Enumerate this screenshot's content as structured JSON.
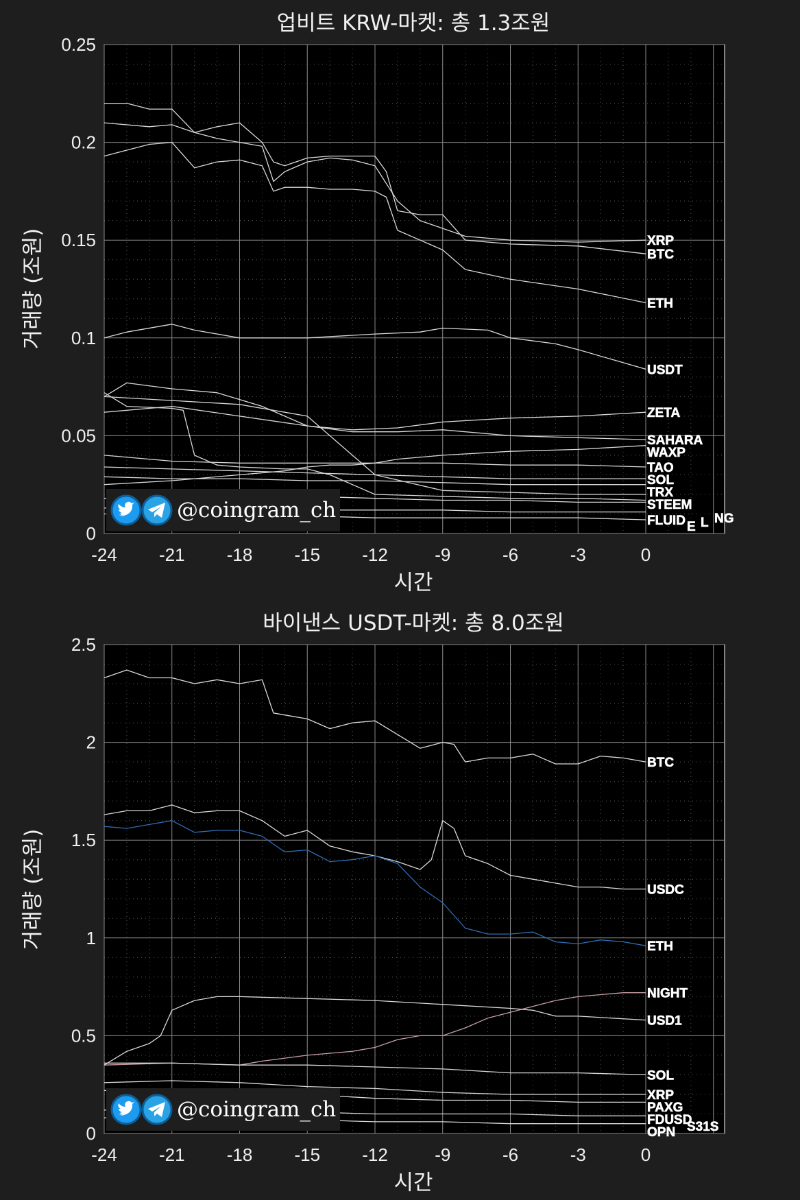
{
  "watermark": {
    "handle": "@coingram_ch",
    "icons": [
      "twitter-bird-icon",
      "telegram-plane-icon"
    ]
  },
  "chart_data": [
    {
      "type": "line",
      "title": "업비트 KRW-마켓: 총 1.3조원",
      "xlabel": "시간",
      "ylabel": "거래량 (조원)",
      "xlim": [
        -24,
        0
      ],
      "ylim": [
        0,
        0.25
      ],
      "xticks": [
        -24,
        -21,
        -18,
        -15,
        -12,
        -9,
        -6,
        -3,
        0
      ],
      "yticks": [
        0,
        0.05,
        0.1,
        0.15,
        0.2,
        0.25
      ],
      "ytick_labels": [
        "0",
        "0.05",
        "0.1",
        "0.15",
        "0.2",
        "0.25"
      ],
      "grid": true,
      "series": [
        {
          "name": "XRP",
          "color": "#d9d9d9",
          "x": [
            -24,
            -22,
            -21,
            -20,
            -19,
            -18,
            -17,
            -16.5,
            -16,
            -15,
            -14,
            -13,
            -12,
            -11,
            -10,
            -9,
            -8,
            -6,
            -3,
            0
          ],
          "y": [
            0.21,
            0.208,
            0.209,
            0.205,
            0.202,
            0.2,
            0.198,
            0.18,
            0.185,
            0.19,
            0.192,
            0.191,
            0.188,
            0.17,
            0.16,
            0.156,
            0.152,
            0.15,
            0.149,
            0.15
          ]
        },
        {
          "name": "BTC",
          "color": "#d9d9d9",
          "x": [
            -24,
            -23,
            -22,
            -21,
            -20,
            -19,
            -18,
            -17,
            -16.5,
            -16,
            -15,
            -14,
            -13,
            -12,
            -11.5,
            -11,
            -10,
            -9,
            -8,
            -6,
            -3,
            0
          ],
          "y": [
            0.22,
            0.22,
            0.217,
            0.217,
            0.205,
            0.208,
            0.21,
            0.2,
            0.19,
            0.188,
            0.192,
            0.193,
            0.193,
            0.193,
            0.185,
            0.165,
            0.163,
            0.163,
            0.15,
            0.148,
            0.147,
            0.143
          ]
        },
        {
          "name": "ETH",
          "color": "#d9d9d9",
          "x": [
            -24,
            -23,
            -22,
            -21,
            -20,
            -19,
            -18,
            -17,
            -16.5,
            -16,
            -15,
            -14,
            -13,
            -12,
            -11.5,
            -11,
            -10,
            -9,
            -8,
            -6,
            -3,
            0
          ],
          "y": [
            0.193,
            0.196,
            0.199,
            0.2,
            0.187,
            0.19,
            0.191,
            0.188,
            0.175,
            0.177,
            0.177,
            0.176,
            0.176,
            0.175,
            0.172,
            0.155,
            0.15,
            0.145,
            0.135,
            0.13,
            0.125,
            0.118
          ]
        },
        {
          "name": "USDT",
          "color": "#d9d9d9",
          "x": [
            -24,
            -23,
            -21,
            -20,
            -18,
            -15,
            -12,
            -10,
            -9,
            -7,
            -6,
            -4,
            -3,
            0
          ],
          "y": [
            0.1,
            0.103,
            0.107,
            0.104,
            0.1,
            0.1,
            0.102,
            0.103,
            0.105,
            0.104,
            0.1,
            0.097,
            0.094,
            0.084
          ]
        },
        {
          "name": "ZETA",
          "color": "#d9d9d9",
          "x": [
            -24,
            -21,
            -18,
            -15,
            -13,
            -11,
            -9,
            -6,
            -3,
            0
          ],
          "y": [
            0.062,
            0.065,
            0.06,
            0.055,
            0.053,
            0.054,
            0.057,
            0.059,
            0.06,
            0.062
          ]
        },
        {
          "name": "SAHARA",
          "color": "#d9d9d9",
          "x": [
            -24,
            -23,
            -21,
            -19,
            -17,
            -15,
            -13,
            -11,
            -9,
            -6,
            -3,
            0
          ],
          "y": [
            0.07,
            0.077,
            0.074,
            0.072,
            0.065,
            0.055,
            0.052,
            0.052,
            0.053,
            0.05,
            0.049,
            0.048
          ]
        },
        {
          "name": "WAXP",
          "color": "#d9d9d9",
          "x": [
            -24,
            -21,
            -18,
            -16,
            -15,
            -14,
            -13,
            -12,
            -11,
            -9,
            -6,
            -3,
            0
          ],
          "y": [
            0.025,
            0.027,
            0.03,
            0.032,
            0.034,
            0.035,
            0.035,
            0.036,
            0.038,
            0.04,
            0.042,
            0.043,
            0.045
          ]
        },
        {
          "name": "TAO",
          "color": "#d9d9d9",
          "x": [
            -24,
            -21,
            -18,
            -15,
            -12,
            -9,
            -6,
            -3,
            0
          ],
          "y": [
            0.04,
            0.037,
            0.036,
            0.036,
            0.036,
            0.036,
            0.035,
            0.035,
            0.034
          ]
        },
        {
          "name": "SOL",
          "color": "#d9d9d9",
          "x": [
            -24,
            -21,
            -18,
            -15,
            -12,
            -9,
            -6,
            -3,
            0
          ],
          "y": [
            0.034,
            0.033,
            0.032,
            0.031,
            0.03,
            0.029,
            0.028,
            0.028,
            0.028
          ]
        },
        {
          "name": "TRX",
          "color": "#d9d9d9",
          "x": [
            -24,
            -21,
            -18,
            -15,
            -12,
            -9,
            -6,
            -3,
            0
          ],
          "y": [
            0.029,
            0.028,
            0.028,
            0.027,
            0.027,
            0.026,
            0.025,
            0.025,
            0.025
          ]
        },
        {
          "name": "STEEM",
          "color": "#d9d9d9",
          "x": [
            -24,
            -21,
            -18,
            -15,
            -12,
            -9,
            -6,
            -3,
            0
          ],
          "y": [
            0.018,
            0.019,
            0.02,
            0.019,
            0.018,
            0.017,
            0.017,
            0.016,
            0.016
          ]
        },
        {
          "name": "FLUID",
          "color": "#d9d9d9",
          "x": [
            -24,
            -21,
            -18,
            -15,
            -12,
            -9,
            -6,
            -3,
            0
          ],
          "y": [
            0.01,
            0.01,
            0.009,
            0.009,
            0.008,
            0.008,
            0.008,
            0.008,
            0.007
          ]
        },
        {
          "name": "",
          "color": "#d9d9d9",
          "x": [
            -24,
            -23,
            -21,
            -20.5,
            -20,
            -19,
            -18,
            -16,
            -15,
            -14,
            -13,
            -12,
            -9,
            -6,
            -3,
            0
          ],
          "y": [
            0.072,
            0.065,
            0.064,
            0.063,
            0.04,
            0.035,
            0.034,
            0.033,
            0.033,
            0.03,
            0.025,
            0.02,
            0.019,
            0.018,
            0.018,
            0.017
          ]
        },
        {
          "name": "",
          "color": "#d9d9d9",
          "x": [
            -24,
            -21,
            -18,
            -16,
            -15,
            -14,
            -13,
            -12,
            -9,
            -6,
            -3,
            0
          ],
          "y": [
            0.07,
            0.068,
            0.066,
            0.062,
            0.06,
            0.05,
            0.04,
            0.03,
            0.022,
            0.021,
            0.02,
            0.02
          ]
        },
        {
          "name": "",
          "color": "#d9d9d9",
          "x": [
            -24,
            -21,
            -18,
            -15,
            -12,
            -9,
            -6,
            -3,
            0
          ],
          "y": [
            0.013,
            0.013,
            0.012,
            0.012,
            0.012,
            0.012,
            0.011,
            0.011,
            0.011
          ]
        }
      ],
      "end_labels": [
        "XRP",
        "BTC",
        "ETH",
        "USDT",
        "ZETA",
        "SAHARA",
        "WAXP",
        "TAO",
        "SOL",
        "TRX",
        "E",
        "STEEM",
        "L",
        "FLUID",
        "NG"
      ]
    },
    {
      "type": "line",
      "title": "바이낸스 USDT-마켓: 총 8.0조원",
      "xlabel": "시간",
      "ylabel": "거래량 (조원)",
      "xlim": [
        -24,
        0
      ],
      "ylim": [
        0,
        2.5
      ],
      "xticks": [
        -24,
        -21,
        -18,
        -15,
        -12,
        -9,
        -6,
        -3,
        0
      ],
      "yticks": [
        0,
        0.5,
        1,
        1.5,
        2,
        2.5
      ],
      "ytick_labels": [
        "0",
        "0.5",
        "1",
        "1.5",
        "2",
        "2.5"
      ],
      "grid": true,
      "series": [
        {
          "name": "BTC",
          "color": "#d9d9d9",
          "x": [
            -24,
            -23,
            -22,
            -21,
            -20,
            -19,
            -18,
            -17,
            -16.5,
            -16,
            -15,
            -14,
            -13,
            -12,
            -11,
            -10,
            -9,
            -8.5,
            -8,
            -7,
            -6,
            -5,
            -4,
            -3,
            -2,
            -1,
            0
          ],
          "y": [
            2.33,
            2.37,
            2.33,
            2.33,
            2.3,
            2.32,
            2.3,
            2.32,
            2.15,
            2.14,
            2.12,
            2.07,
            2.1,
            2.11,
            2.04,
            1.97,
            2.0,
            1.99,
            1.9,
            1.92,
            1.92,
            1.94,
            1.89,
            1.89,
            1.93,
            1.92,
            1.9
          ]
        },
        {
          "name": "USDC",
          "color": "#d9d9d9",
          "x": [
            -24,
            -23,
            -22,
            -21,
            -20,
            -19,
            -18,
            -17,
            -16,
            -15,
            -14,
            -13,
            -12,
            -11,
            -10,
            -9.5,
            -9,
            -8.5,
            -8,
            -7,
            -6,
            -5,
            -4,
            -3,
            -2,
            -1,
            0
          ],
          "y": [
            1.63,
            1.65,
            1.65,
            1.68,
            1.64,
            1.65,
            1.65,
            1.6,
            1.52,
            1.55,
            1.47,
            1.44,
            1.42,
            1.39,
            1.35,
            1.4,
            1.6,
            1.56,
            1.42,
            1.38,
            1.32,
            1.3,
            1.28,
            1.26,
            1.26,
            1.25,
            1.25
          ]
        },
        {
          "name": "ETH",
          "color": "#2f6eb5",
          "x": [
            -24,
            -23,
            -22,
            -21,
            -20,
            -19,
            -18,
            -17,
            -16,
            -15,
            -14,
            -13,
            -12,
            -11,
            -10,
            -9,
            -8,
            -7,
            -6,
            -5,
            -4,
            -3,
            -2,
            -1,
            0
          ],
          "y": [
            1.57,
            1.56,
            1.58,
            1.6,
            1.54,
            1.55,
            1.55,
            1.52,
            1.44,
            1.45,
            1.39,
            1.4,
            1.42,
            1.38,
            1.26,
            1.18,
            1.05,
            1.02,
            1.02,
            1.03,
            0.98,
            0.97,
            0.99,
            0.98,
            0.96
          ]
        },
        {
          "name": "NIGHT",
          "color": "#c9a0a5",
          "x": [
            -24,
            -21,
            -18,
            -17,
            -15,
            -13,
            -12,
            -11,
            -10,
            -9,
            -8,
            -7,
            -6,
            -5,
            -4,
            -3,
            -2,
            -1,
            0
          ],
          "y": [
            0.35,
            0.36,
            0.35,
            0.37,
            0.4,
            0.42,
            0.44,
            0.48,
            0.5,
            0.5,
            0.54,
            0.59,
            0.62,
            0.65,
            0.68,
            0.7,
            0.71,
            0.72,
            0.72
          ]
        },
        {
          "name": "USD1",
          "color": "#d9d9d9",
          "x": [
            -24,
            -23,
            -22,
            -21.5,
            -21,
            -20,
            -19,
            -18,
            -15,
            -12,
            -9,
            -6,
            -5,
            -4,
            -3,
            0
          ],
          "y": [
            0.35,
            0.42,
            0.46,
            0.5,
            0.63,
            0.68,
            0.7,
            0.7,
            0.69,
            0.68,
            0.66,
            0.64,
            0.63,
            0.6,
            0.6,
            0.58
          ]
        },
        {
          "name": "SOL",
          "color": "#d9d9d9",
          "x": [
            -24,
            -21,
            -18,
            -15,
            -12,
            -9,
            -6,
            -3,
            0
          ],
          "y": [
            0.36,
            0.36,
            0.35,
            0.35,
            0.34,
            0.33,
            0.31,
            0.31,
            0.3
          ]
        },
        {
          "name": "XRP",
          "color": "#d9d9d9",
          "x": [
            -24,
            -21,
            -18,
            -15,
            -12,
            -9,
            -6,
            -3,
            0
          ],
          "y": [
            0.26,
            0.27,
            0.26,
            0.24,
            0.23,
            0.21,
            0.2,
            0.2,
            0.2
          ]
        },
        {
          "name": "PAXG",
          "color": "#d9d9d9",
          "x": [
            -24,
            -21,
            -18,
            -15,
            -12,
            -9,
            -6,
            -3,
            0
          ],
          "y": [
            0.22,
            0.22,
            0.22,
            0.2,
            0.18,
            0.17,
            0.17,
            0.16,
            0.16
          ]
        },
        {
          "name": "FDUSD",
          "color": "#d9d9d9",
          "x": [
            -24,
            -21,
            -18,
            -15,
            -12,
            -9,
            -6,
            -3,
            0
          ],
          "y": [
            0.12,
            0.12,
            0.11,
            0.11,
            0.1,
            0.1,
            0.1,
            0.09,
            0.09
          ]
        },
        {
          "name": "OPN",
          "color": "#d9d9d9",
          "x": [
            -24,
            -21,
            -18,
            -15,
            -12,
            -9,
            -6,
            -3,
            0
          ],
          "y": [
            0.08,
            0.08,
            0.07,
            0.07,
            0.06,
            0.06,
            0.05,
            0.05,
            0.05
          ]
        }
      ],
      "end_labels": [
        "BTC",
        "USDC",
        "ETH",
        "NIGHT",
        "USD1",
        "SOL",
        "XRP",
        "PAXG",
        "FDUSD",
        "OPN",
        "S31S"
      ]
    }
  ]
}
